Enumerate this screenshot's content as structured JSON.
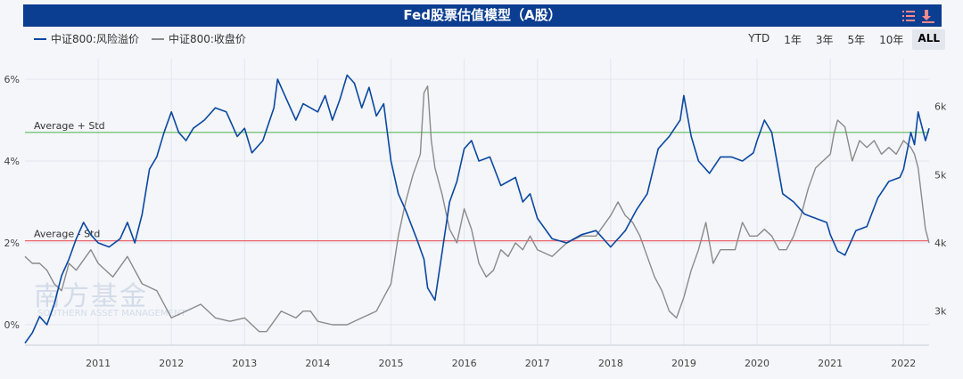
{
  "title": "Fed股票估值模型（A股）",
  "icons": {
    "menu": "list-icon",
    "download": "download-icon"
  },
  "legend": [
    {
      "name": "中证800:风险溢价",
      "color": "#0b47a1"
    },
    {
      "name": "中证800:收盘价",
      "color": "#8a8a8a"
    }
  ],
  "range_buttons": [
    "YTD",
    "1年",
    "3年",
    "5年",
    "10年",
    "ALL"
  ],
  "range_active": "ALL",
  "watermark": {
    "main": "南方基金",
    "sub": "SOUTHERN ASSET MANAGEMENT"
  },
  "colors": {
    "accent": "#0b3d91",
    "upper_line": "#5cb85c",
    "lower_line": "#e8555a"
  },
  "chart_data": {
    "type": "line",
    "title": "Fed股票估值模型（A股）",
    "x_range": [
      2010.0,
      2022.35
    ],
    "x_ticks": [
      "2011",
      "2012",
      "2013",
      "2014",
      "2015",
      "2016",
      "2017",
      "2018",
      "2019",
      "2020",
      "2021",
      "2022"
    ],
    "y_left": {
      "range": [
        -0.5,
        6.5
      ],
      "ticks": [
        "0%",
        "2%",
        "4%",
        "6%"
      ],
      "tick_values": [
        0,
        2,
        4,
        6
      ]
    },
    "y_right": {
      "range": [
        2.5,
        6.7
      ],
      "ticks": [
        "3k",
        "4k",
        "5k",
        "6k"
      ],
      "tick_values": [
        3,
        4,
        5,
        6
      ]
    },
    "reference_lines": [
      {
        "label": "Average + Std",
        "value": 4.7
      },
      {
        "label": "Average - Std",
        "value": 2.05
      }
    ],
    "series": [
      {
        "name": "中证800:风险溢价",
        "axis": "left",
        "x": [
          2010.0,
          2010.1,
          2010.2,
          2010.3,
          2010.4,
          2010.5,
          2010.6,
          2010.7,
          2010.8,
          2010.9,
          2011.0,
          2011.15,
          2011.3,
          2011.4,
          2011.5,
          2011.6,
          2011.7,
          2011.8,
          2011.9,
          2012.0,
          2012.1,
          2012.2,
          2012.3,
          2012.45,
          2012.6,
          2012.75,
          2012.9,
          2013.0,
          2013.1,
          2013.25,
          2013.4,
          2013.45,
          2013.55,
          2013.7,
          2013.8,
          2013.9,
          2014.0,
          2014.1,
          2014.2,
          2014.3,
          2014.4,
          2014.5,
          2014.6,
          2014.7,
          2014.8,
          2014.9,
          2015.0,
          2015.1,
          2015.2,
          2015.35,
          2015.45,
          2015.5,
          2015.6,
          2015.7,
          2015.8,
          2015.9,
          2016.0,
          2016.1,
          2016.2,
          2016.35,
          2016.5,
          2016.6,
          2016.7,
          2016.8,
          2016.9,
          2017.0,
          2017.2,
          2017.4,
          2017.6,
          2017.8,
          2018.0,
          2018.1,
          2018.2,
          2018.35,
          2018.5,
          2018.65,
          2018.8,
          2018.95,
          2019.0,
          2019.1,
          2019.2,
          2019.35,
          2019.5,
          2019.65,
          2019.8,
          2019.95,
          2020.0,
          2020.1,
          2020.2,
          2020.35,
          2020.5,
          2020.65,
          2020.8,
          2020.95,
          2021.0,
          2021.1,
          2021.2,
          2021.35,
          2021.5,
          2021.65,
          2021.8,
          2021.95,
          2022.0,
          2022.1,
          2022.15,
          2022.2,
          2022.3,
          2022.35
        ],
        "y": [
          -0.45,
          -0.2,
          0.2,
          0.0,
          0.5,
          1.2,
          1.6,
          2.1,
          2.5,
          2.2,
          2.0,
          1.9,
          2.1,
          2.5,
          2.0,
          2.7,
          3.8,
          4.1,
          4.7,
          5.2,
          4.7,
          4.5,
          4.8,
          5.0,
          5.3,
          5.2,
          4.6,
          4.8,
          4.2,
          4.5,
          5.3,
          6.0,
          5.6,
          5.0,
          5.4,
          5.3,
          5.2,
          5.6,
          5.0,
          5.5,
          6.1,
          5.9,
          5.3,
          5.8,
          5.1,
          5.4,
          4.0,
          3.2,
          2.8,
          2.1,
          1.6,
          0.9,
          0.6,
          1.8,
          3.0,
          3.5,
          4.3,
          4.5,
          4.0,
          4.1,
          3.4,
          3.5,
          3.6,
          3.0,
          3.2,
          2.6,
          2.1,
          2.0,
          2.2,
          2.3,
          1.9,
          2.1,
          2.3,
          2.8,
          3.2,
          4.3,
          4.6,
          5.0,
          5.6,
          4.6,
          4.0,
          3.7,
          4.1,
          4.1,
          4.0,
          4.2,
          4.5,
          5.0,
          4.7,
          3.2,
          3.0,
          2.7,
          2.6,
          2.5,
          2.2,
          1.8,
          1.7,
          2.3,
          2.4,
          3.1,
          3.5,
          3.6,
          3.8,
          4.7,
          4.4,
          5.2,
          4.5,
          4.8
        ]
      },
      {
        "name": "中证800:收盘价",
        "axis": "right",
        "x": [
          2010.0,
          2010.1,
          2010.2,
          2010.3,
          2010.4,
          2010.5,
          2010.6,
          2010.7,
          2010.8,
          2010.9,
          2011.0,
          2011.2,
          2011.4,
          2011.6,
          2011.8,
          2012.0,
          2012.2,
          2012.4,
          2012.6,
          2012.8,
          2013.0,
          2013.1,
          2013.2,
          2013.3,
          2013.4,
          2013.5,
          2013.6,
          2013.7,
          2013.8,
          2013.9,
          2014.0,
          2014.2,
          2014.4,
          2014.6,
          2014.8,
          2014.9,
          2015.0,
          2015.1,
          2015.2,
          2015.3,
          2015.4,
          2015.45,
          2015.5,
          2015.55,
          2015.6,
          2015.7,
          2015.8,
          2015.9,
          2016.0,
          2016.1,
          2016.2,
          2016.3,
          2016.4,
          2016.5,
          2016.6,
          2016.7,
          2016.8,
          2016.9,
          2017.0,
          2017.2,
          2017.4,
          2017.6,
          2017.8,
          2018.0,
          2018.1,
          2018.2,
          2018.3,
          2018.4,
          2018.5,
          2018.6,
          2018.7,
          2018.8,
          2018.9,
          2019.0,
          2019.1,
          2019.2,
          2019.3,
          2019.4,
          2019.5,
          2019.6,
          2019.7,
          2019.8,
          2019.9,
          2020.0,
          2020.1,
          2020.2,
          2020.3,
          2020.4,
          2020.5,
          2020.6,
          2020.7,
          2020.8,
          2020.9,
          2021.0,
          2021.05,
          2021.1,
          2021.2,
          2021.3,
          2021.4,
          2021.5,
          2021.6,
          2021.7,
          2021.8,
          2021.9,
          2022.0,
          2022.1,
          2022.15,
          2022.2,
          2022.3,
          2022.35
        ],
        "y": [
          3.8,
          3.7,
          3.7,
          3.6,
          3.4,
          3.3,
          3.7,
          3.6,
          3.75,
          3.9,
          3.7,
          3.5,
          3.8,
          3.4,
          3.3,
          2.9,
          3.0,
          3.1,
          2.9,
          2.85,
          2.9,
          2.8,
          2.7,
          2.7,
          2.85,
          3.0,
          2.95,
          2.9,
          3.0,
          3.0,
          2.85,
          2.8,
          2.8,
          2.9,
          3.0,
          3.2,
          3.4,
          4.1,
          4.6,
          5.0,
          5.3,
          6.2,
          6.3,
          5.5,
          5.1,
          4.7,
          4.2,
          4.0,
          4.5,
          4.2,
          3.7,
          3.5,
          3.6,
          3.9,
          3.8,
          4.0,
          3.9,
          4.1,
          3.9,
          3.8,
          4.0,
          4.1,
          4.1,
          4.4,
          4.6,
          4.4,
          4.3,
          4.1,
          3.8,
          3.5,
          3.3,
          3.0,
          2.9,
          3.2,
          3.6,
          3.9,
          4.3,
          3.7,
          3.9,
          3.9,
          3.9,
          4.3,
          4.1,
          4.1,
          4.2,
          4.1,
          3.9,
          3.9,
          4.1,
          4.4,
          4.8,
          5.1,
          5.2,
          5.3,
          5.6,
          5.8,
          5.7,
          5.2,
          5.5,
          5.4,
          5.5,
          5.3,
          5.4,
          5.3,
          5.5,
          5.4,
          5.3,
          5.1,
          4.2,
          4.0
        ]
      }
    ]
  }
}
